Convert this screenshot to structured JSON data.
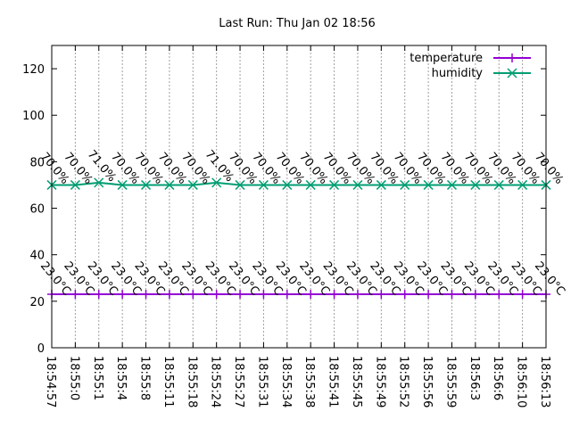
{
  "chart_data": {
    "type": "line",
    "title": "Last Run: Thu Jan 02 18:56",
    "xlabel": "",
    "ylabel": "",
    "ylim": [
      0,
      130
    ],
    "yticks": [
      0,
      20,
      40,
      60,
      80,
      100,
      120
    ],
    "categories": [
      "18:54:57",
      "18:55:0",
      "18:55:1",
      "18:55:4",
      "18:55:8",
      "18:55:11",
      "18:55:18",
      "18:55:24",
      "18:55:27",
      "18:55:31",
      "18:55:34",
      "18:55:38",
      "18:55:41",
      "18:55:45",
      "18:55:49",
      "18:55:52",
      "18:55:56",
      "18:55:59",
      "18:56:3",
      "18:56:6",
      "18:56:10",
      "18:56:13"
    ],
    "grid": "x-only",
    "legend": "top-right",
    "series": [
      {
        "name": "temperature",
        "color": "#9400d3",
        "marker": "plus",
        "values": [
          23,
          23,
          23,
          23,
          23,
          23,
          23,
          23,
          23,
          23,
          23,
          23,
          23,
          23,
          23,
          23,
          23,
          23,
          23,
          23,
          23,
          23
        ],
        "labels": [
          "23.0°C",
          "23.0°C",
          "23.0°C",
          "23.0°C",
          "23.0°C",
          "23.0°C",
          "23.0°C",
          "23.0°C",
          "23.0°C",
          "23.0°C",
          "23.0°C",
          "23.0°C",
          "23.0°C",
          "23.0°C",
          "23.0°C",
          "23.0°C",
          "23.0°C",
          "23.0°C",
          "23.0°C",
          "23.0°C",
          "23.0°C",
          "23.0°C"
        ]
      },
      {
        "name": "humidity",
        "color": "#009e73",
        "marker": "x",
        "values": [
          70,
          70,
          71,
          70,
          70,
          70,
          70,
          71,
          70,
          70,
          70,
          70,
          70,
          70,
          70,
          70,
          70,
          70,
          70,
          70,
          70,
          70
        ],
        "labels": [
          "70.0%",
          "70.0%",
          "71.0%",
          "70.0%",
          "70.0%",
          "70.0%",
          "70.0%",
          "71.0%",
          "70.0%",
          "70.0%",
          "70.0%",
          "70.0%",
          "70.0%",
          "70.0%",
          "70.0%",
          "70.0%",
          "70.0%",
          "70.0%",
          "70.0%",
          "70.0%",
          "70.0%",
          "70.0%"
        ]
      }
    ]
  }
}
